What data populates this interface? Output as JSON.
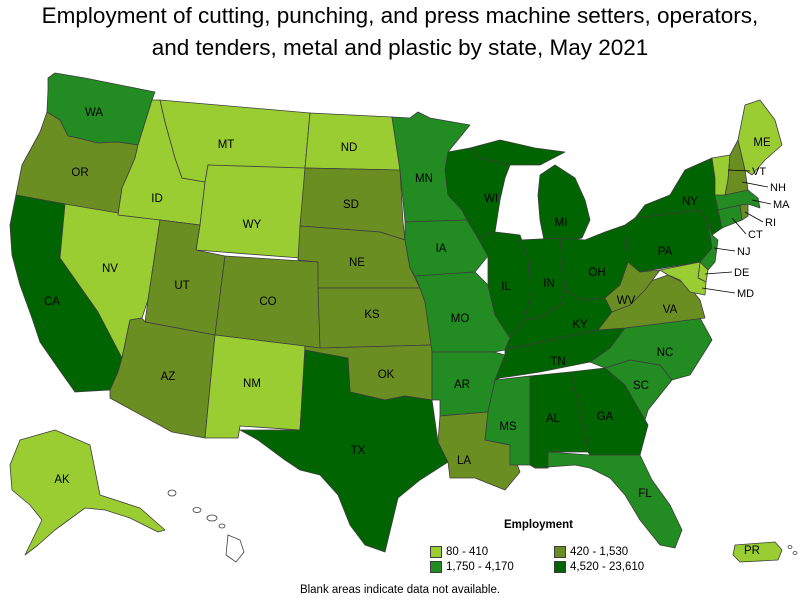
{
  "title": {
    "line1": "Employment of cutting, punching, and press machine setters, operators,",
    "line2": "and tenders, metal and plastic by state, May 2021"
  },
  "colors": {
    "c1": "#9acd32",
    "c2": "#228b22",
    "c3": "#6b8e23",
    "c4": "#006400"
  },
  "legend": {
    "title": "Employment",
    "items": [
      {
        "label": "80 - 410",
        "color": "#9acd32"
      },
      {
        "label": "420 - 1,530",
        "color": "#6b8e23"
      },
      {
        "label": "1,750 - 4,170",
        "color": "#228b22"
      },
      {
        "label": "4,520 - 23,610",
        "color": "#006400"
      }
    ]
  },
  "note": "Blank areas indicate data not available.",
  "states": {
    "WA": {
      "label": "WA",
      "class": "1,750 - 4,170"
    },
    "OR": {
      "label": "OR",
      "class": "420 - 1,530"
    },
    "CA": {
      "label": "CA",
      "class": "4,520 - 23,610"
    },
    "NV": {
      "label": "NV",
      "class": "80 - 410"
    },
    "ID": {
      "label": "ID",
      "class": "80 - 410"
    },
    "MT": {
      "label": "MT",
      "class": "80 - 410"
    },
    "WY": {
      "label": "WY",
      "class": "80 - 410"
    },
    "UT": {
      "label": "UT",
      "class": "420 - 1,530"
    },
    "AZ": {
      "label": "AZ",
      "class": "420 - 1,530"
    },
    "CO": {
      "label": "CO",
      "class": "420 - 1,530"
    },
    "NM": {
      "label": "NM",
      "class": "80 - 410"
    },
    "ND": {
      "label": "ND",
      "class": "80 - 410"
    },
    "SD": {
      "label": "SD",
      "class": "420 - 1,530"
    },
    "NE": {
      "label": "NE",
      "class": "420 - 1,530"
    },
    "KS": {
      "label": "KS",
      "class": "420 - 1,530"
    },
    "OK": {
      "label": "OK",
      "class": "420 - 1,530"
    },
    "TX": {
      "label": "TX",
      "class": "4,520 - 23,610"
    },
    "MN": {
      "label": "MN",
      "class": "1,750 - 4,170"
    },
    "IA": {
      "label": "IA",
      "class": "1,750 - 4,170"
    },
    "MO": {
      "label": "MO",
      "class": "1,750 - 4,170"
    },
    "AR": {
      "label": "AR",
      "class": "1,750 - 4,170"
    },
    "LA": {
      "label": "LA",
      "class": "420 - 1,530"
    },
    "WI": {
      "label": "WI",
      "class": "4,520 - 23,610"
    },
    "IL": {
      "label": "IL",
      "class": "4,520 - 23,610"
    },
    "MI": {
      "label": "MI",
      "class": "4,520 - 23,610"
    },
    "IN": {
      "label": "IN",
      "class": "4,520 - 23,610"
    },
    "OH": {
      "label": "OH",
      "class": "4,520 - 23,610"
    },
    "KY": {
      "label": "KY",
      "class": "4,520 - 23,610"
    },
    "TN": {
      "label": "TN",
      "class": "4,520 - 23,610"
    },
    "MS": {
      "label": "MS",
      "class": "1,750 - 4,170"
    },
    "AL": {
      "label": "AL",
      "class": "4,520 - 23,610"
    },
    "GA": {
      "label": "GA",
      "class": "4,520 - 23,610"
    },
    "FL": {
      "label": "FL",
      "class": "1,750 - 4,170"
    },
    "SC": {
      "label": "SC",
      "class": "1,750 - 4,170"
    },
    "NC": {
      "label": "NC",
      "class": "1,750 - 4,170"
    },
    "VA": {
      "label": "VA",
      "class": "420 - 1,530"
    },
    "WV": {
      "label": "WV",
      "class": "420 - 1,530"
    },
    "PA": {
      "label": "PA",
      "class": "4,520 - 23,610"
    },
    "NY": {
      "label": "NY",
      "class": "4,520 - 23,610"
    },
    "ME": {
      "label": "ME",
      "class": "80 - 410"
    },
    "VT": {
      "label": "VT",
      "class": "80 - 410"
    },
    "NH": {
      "label": "NH",
      "class": "420 - 1,530"
    },
    "MA": {
      "label": "MA",
      "class": "1,750 - 4,170"
    },
    "RI": {
      "label": "RI",
      "class": "420 - 1,530"
    },
    "CT": {
      "label": "CT",
      "class": "1,750 - 4,170"
    },
    "NJ": {
      "label": "NJ",
      "class": "1,750 - 4,170"
    },
    "DE": {
      "label": "DE",
      "class": "80 - 410"
    },
    "MD": {
      "label": "MD",
      "class": "80 - 410"
    },
    "AK": {
      "label": "AK",
      "class": "80 - 410"
    },
    "PR": {
      "label": "PR",
      "class": "80 - 410"
    }
  }
}
